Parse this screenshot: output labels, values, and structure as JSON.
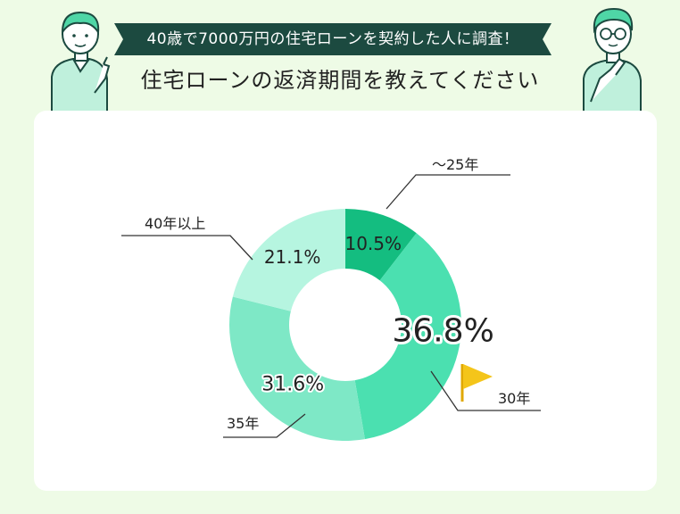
{
  "header": {
    "banner_text": "40歳で7000万円の住宅ローンを契約した人に調査！",
    "title": "住宅ローンの返済期間を教えてください"
  },
  "colors": {
    "background": "#eefbe6",
    "banner": "#1c4a40",
    "flag": "#f4c51a",
    "leader_line": "#333333"
  },
  "icons": [
    "pointing-person-illustration",
    "thinking-person-illustration",
    "flag-icon"
  ],
  "chart_data": {
    "type": "pie",
    "donut": true,
    "legend": "labels-outside-with-leader-lines",
    "highlight": "30年",
    "slices": [
      {
        "label": "〜25年",
        "value": 10.5,
        "value_label": "10.5%",
        "color": "#14bd80"
      },
      {
        "label": "30年",
        "value": 36.8,
        "value_label": "36.8%",
        "color": "#4be0b0"
      },
      {
        "label": "35年",
        "value": 31.6,
        "value_label": "31.6%",
        "color": "#7ee8c6"
      },
      {
        "label": "40年以上",
        "value": 21.1,
        "value_label": "21.1%",
        "color": "#b6f5e0"
      }
    ]
  }
}
